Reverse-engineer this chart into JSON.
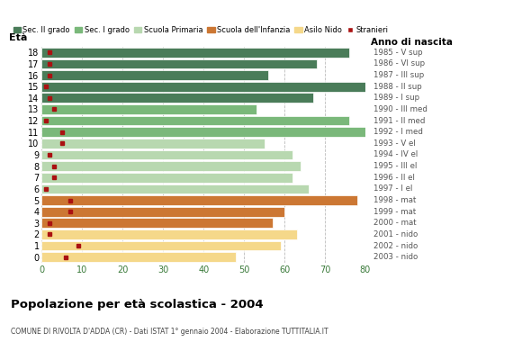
{
  "ages": [
    18,
    17,
    16,
    15,
    14,
    13,
    12,
    11,
    10,
    9,
    8,
    7,
    6,
    5,
    4,
    3,
    2,
    1,
    0
  ],
  "years": [
    "1985 - V sup",
    "1986 - VI sup",
    "1987 - III sup",
    "1988 - II sup",
    "1989 - I sup",
    "1990 - III med",
    "1991 - II med",
    "1992 - I med",
    "1993 - V el",
    "1994 - IV el",
    "1995 - III el",
    "1996 - II el",
    "1997 - I el",
    "1998 - mat",
    "1999 - mat",
    "2000 - mat",
    "2001 - nido",
    "2002 - nido",
    "2003 - nido"
  ],
  "bar_values": [
    76,
    68,
    56,
    80,
    67,
    53,
    76,
    80,
    55,
    62,
    64,
    62,
    66,
    78,
    60,
    57,
    63,
    59,
    48
  ],
  "stranieri": [
    2,
    2,
    2,
    1,
    2,
    3,
    1,
    5,
    5,
    2,
    3,
    3,
    1,
    7,
    7,
    2,
    2,
    9,
    6
  ],
  "bar_colors": [
    "#4a7c59",
    "#4a7c59",
    "#4a7c59",
    "#4a7c59",
    "#4a7c59",
    "#7ab87a",
    "#7ab87a",
    "#7ab87a",
    "#b8d8b0",
    "#b8d8b0",
    "#b8d8b0",
    "#b8d8b0",
    "#b8d8b0",
    "#cc7733",
    "#cc7733",
    "#cc7733",
    "#f5d88a",
    "#f5d88a",
    "#f5d88a"
  ],
  "legend_labels": [
    "Sec. II grado",
    "Sec. I grado",
    "Scuola Primaria",
    "Scuola dell'Infanzia",
    "Asilo Nido",
    "Stranieri"
  ],
  "legend_colors": [
    "#4a7c59",
    "#7ab87a",
    "#b8d8b0",
    "#cc7733",
    "#f5d88a",
    "#aa1111"
  ],
  "title": "Popolazione per età scolastica - 2004",
  "subtitle": "COMUNE DI RIVOLTA D'ADDA (CR) - Dati ISTAT 1° gennaio 2004 - Elaborazione TUTTITALIA.IT",
  "ylabel_left": "Età",
  "ylabel_right": "Anno di nascita",
  "xlim": [
    0,
    80
  ],
  "background_color": "#ffffff",
  "stranieri_color": "#aa1111",
  "grid_color": "#bbbbbb"
}
